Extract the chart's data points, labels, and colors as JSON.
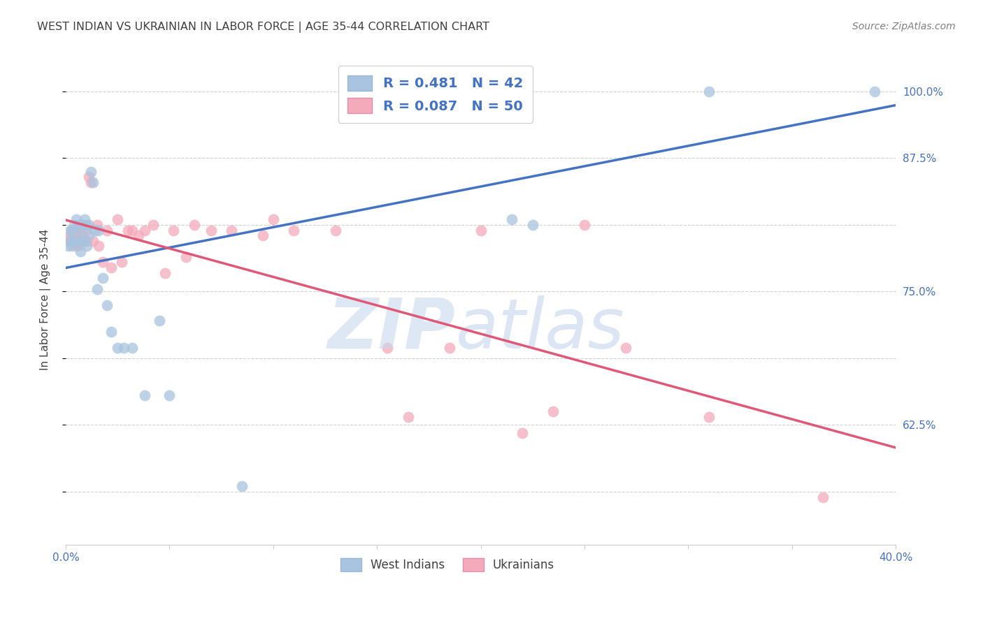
{
  "title": "WEST INDIAN VS UKRAINIAN IN LABOR FORCE | AGE 35-44 CORRELATION CHART",
  "source": "Source: ZipAtlas.com",
  "ylabel": "In Labor Force | Age 35-44",
  "west_indian_R": 0.481,
  "west_indian_N": 42,
  "ukrainian_R": 0.087,
  "ukrainian_N": 50,
  "west_indian_color": "#A8C4E0",
  "ukrainian_color": "#F4AABB",
  "west_indian_line_color": "#4472C4",
  "ukrainian_line_color": "#E05878",
  "title_color": "#404040",
  "source_color": "#808080",
  "axis_label_color": "#404040",
  "tick_label_color": "#4472C4",
  "background_color": "#FFFFFF",
  "grid_color": "#CCCCCC",
  "xmin": 0.0,
  "xmax": 0.4,
  "ymin": 0.575,
  "ymax": 1.035,
  "west_indian_x": [
    0.001,
    0.002,
    0.002,
    0.003,
    0.003,
    0.004,
    0.004,
    0.005,
    0.005,
    0.006,
    0.006,
    0.007,
    0.007,
    0.008,
    0.008,
    0.009,
    0.009,
    0.01,
    0.01,
    0.011,
    0.011,
    0.012,
    0.013,
    0.014,
    0.015,
    0.016,
    0.018,
    0.02,
    0.022,
    0.025,
    0.028,
    0.032,
    0.038,
    0.045,
    0.05,
    0.085,
    0.2,
    0.205,
    0.215,
    0.225,
    0.31,
    0.39
  ],
  "west_indian_y": [
    0.855,
    0.86,
    0.87,
    0.87,
    0.855,
    0.875,
    0.86,
    0.88,
    0.86,
    0.875,
    0.86,
    0.87,
    0.85,
    0.875,
    0.86,
    0.88,
    0.86,
    0.875,
    0.855,
    0.875,
    0.865,
    0.925,
    0.915,
    0.87,
    0.815,
    0.87,
    0.825,
    0.8,
    0.775,
    0.76,
    0.76,
    0.76,
    0.715,
    0.785,
    0.715,
    0.63,
    1.0,
    1.0,
    0.88,
    0.875,
    1.0,
    1.0
  ],
  "ukrainian_x": [
    0.001,
    0.002,
    0.003,
    0.003,
    0.004,
    0.005,
    0.005,
    0.006,
    0.006,
    0.007,
    0.008,
    0.008,
    0.009,
    0.01,
    0.01,
    0.011,
    0.012,
    0.013,
    0.015,
    0.016,
    0.018,
    0.02,
    0.022,
    0.025,
    0.027,
    0.03,
    0.032,
    0.035,
    0.038,
    0.042,
    0.048,
    0.052,
    0.058,
    0.062,
    0.07,
    0.08,
    0.095,
    0.1,
    0.11,
    0.13,
    0.155,
    0.165,
    0.185,
    0.2,
    0.22,
    0.235,
    0.25,
    0.27,
    0.31,
    0.365
  ],
  "ukrainian_y": [
    0.86,
    0.865,
    0.87,
    0.86,
    0.86,
    0.87,
    0.855,
    0.87,
    0.855,
    0.86,
    0.875,
    0.865,
    0.86,
    0.87,
    0.86,
    0.92,
    0.915,
    0.86,
    0.875,
    0.855,
    0.84,
    0.87,
    0.835,
    0.88,
    0.84,
    0.87,
    0.87,
    0.865,
    0.87,
    0.875,
    0.83,
    0.87,
    0.845,
    0.875,
    0.87,
    0.87,
    0.865,
    0.88,
    0.87,
    0.87,
    0.76,
    0.695,
    0.76,
    0.87,
    0.68,
    0.7,
    0.875,
    0.76,
    0.695,
    0.62
  ],
  "legend_box_color": "#FFFFFF",
  "legend_border_color": "#CCCCCC"
}
